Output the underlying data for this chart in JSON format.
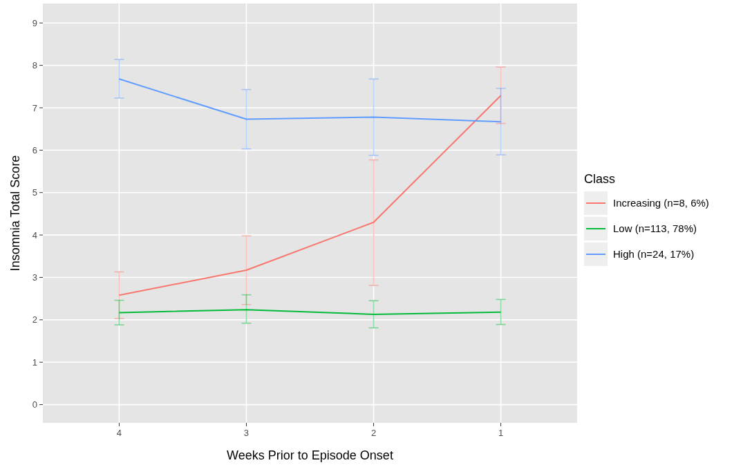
{
  "chart_data": {
    "type": "line",
    "xlabel": "Weeks Prior to Episode Onset",
    "ylabel": "Insomnia Total Score",
    "legend_title": "Class",
    "categories": [
      "4",
      "3",
      "2",
      "1"
    ],
    "ylim": [
      -0.43,
      9.46
    ],
    "yticks": [
      0,
      1,
      2,
      3,
      4,
      5,
      6,
      7,
      8,
      9
    ],
    "grid": true,
    "legend": "right",
    "marker": "none",
    "series": [
      {
        "name": "Increasing (n=8, 6%)",
        "color": "#f8766d",
        "values": [
          2.58,
          3.17,
          4.3,
          7.29
        ],
        "errors": [
          [
            2.03,
            3.13
          ],
          [
            2.36,
            3.98
          ],
          [
            2.81,
            5.77
          ],
          [
            6.63,
            7.96
          ]
        ]
      },
      {
        "name": "Low (n=113, 78%)",
        "color": "#00ba38",
        "values": [
          2.17,
          2.24,
          2.13,
          2.18
        ],
        "errors": [
          [
            1.88,
            2.46
          ],
          [
            1.92,
            2.59
          ],
          [
            1.81,
            2.45
          ],
          [
            1.89,
            2.48
          ]
        ]
      },
      {
        "name": "High (n=24, 17%)",
        "color": "#619cff",
        "values": [
          7.68,
          6.73,
          6.78,
          6.67
        ],
        "errors": [
          [
            7.23,
            8.14
          ],
          [
            6.03,
            7.43
          ],
          [
            5.88,
            7.68
          ],
          [
            5.89,
            7.46
          ]
        ]
      }
    ]
  }
}
